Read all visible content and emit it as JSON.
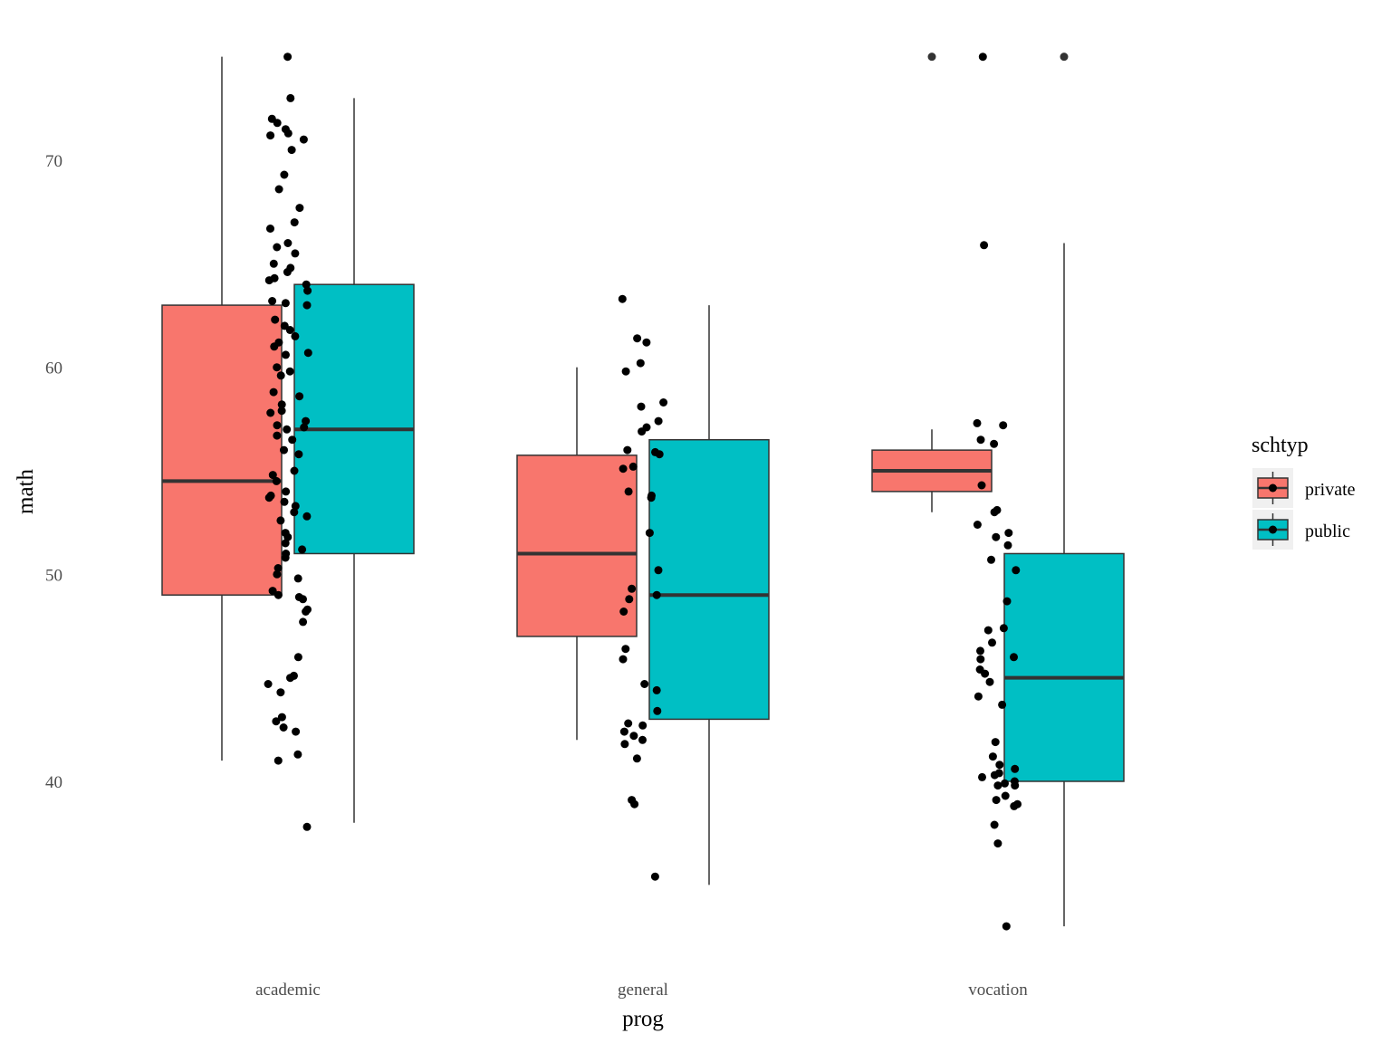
{
  "chart_data": {
    "type": "boxplot",
    "title": "",
    "xlabel": "prog",
    "ylabel": "math",
    "ylim": [
      32,
      76
    ],
    "yticks": [
      40,
      50,
      60,
      70
    ],
    "grid": false,
    "legend_position": "right",
    "categories": [
      "academic",
      "general",
      "vocation"
    ],
    "legend": {
      "title": "schtyp",
      "entries": [
        {
          "label": "private",
          "color": "#F8766D"
        },
        {
          "label": "public",
          "color": "#00BFC4"
        }
      ]
    },
    "series": [
      {
        "name": "private",
        "color": "#F8766D",
        "boxes": [
          {
            "category": "academic",
            "min": 41,
            "q1": 49,
            "median": 54.5,
            "q3": 63,
            "max": 75
          },
          {
            "category": "general",
            "min": 42,
            "q1": 47,
            "median": 51,
            "q3": 55.75,
            "max": 60
          },
          {
            "category": "vocation",
            "min": 53,
            "q1": 54,
            "median": 55,
            "q3": 56,
            "max": 57
          }
        ],
        "outliers": [
          {
            "category": "vocation",
            "value": 75
          }
        ]
      },
      {
        "name": "public",
        "color": "#00BFC4",
        "boxes": [
          {
            "category": "academic",
            "min": 38,
            "q1": 51,
            "median": 57,
            "q3": 64,
            "max": 73
          },
          {
            "category": "general",
            "min": 35,
            "q1": 43,
            "median": 49,
            "q3": 56.5,
            "max": 63
          },
          {
            "category": "vocation",
            "min": 33,
            "q1": 40,
            "median": 45,
            "q3": 51,
            "max": 66
          }
        ],
        "outliers": [
          {
            "category": "vocation",
            "value": 75
          }
        ]
      }
    ],
    "jitter_points": {
      "color": "#000000",
      "groups": [
        {
          "category": "academic",
          "values": [
            75,
            73,
            72,
            71.8,
            71.5,
            71.3,
            71.2,
            71,
            70.5,
            69.3,
            68.6,
            67.7,
            67,
            66.7,
            66,
            65.8,
            65.5,
            65,
            64.8,
            64.6,
            64.3,
            64.2,
            64,
            63.7,
            63.2,
            63.1,
            63,
            62.3,
            62,
            61.8,
            61.5,
            61.2,
            61,
            60.7,
            60.6,
            60,
            59.8,
            59.6,
            58.8,
            58.6,
            58.2,
            57.9,
            57.8,
            57.4,
            57.2,
            57.1,
            57,
            56.7,
            56.5,
            56,
            55.8,
            55,
            54.8,
            54.5,
            54,
            53.8,
            53.7,
            53.5,
            53.3,
            53,
            52.8,
            52.6,
            52,
            51.8,
            51.5,
            51.2,
            51,
            50.8,
            50.3,
            50,
            49.8,
            49.2,
            49,
            48.9,
            48.8,
            48.3,
            48.2,
            47.7,
            46,
            45.1,
            45,
            44.7,
            44.3,
            43.1,
            42.9,
            42.6,
            42.4,
            41.3,
            41,
            37.8
          ]
        },
        {
          "category": "general",
          "values": [
            63.3,
            61.4,
            61.2,
            60.2,
            59.8,
            58.3,
            58.1,
            57.4,
            57.1,
            56.9,
            56,
            55.9,
            55.8,
            55.2,
            55.1,
            54,
            53.8,
            53.7,
            52,
            50.2,
            49.3,
            49,
            48.8,
            48.2,
            46.4,
            45.9,
            44.7,
            44.4,
            43.4,
            42.8,
            42.7,
            42.4,
            42.2,
            42,
            41.8,
            41.1,
            39.1,
            38.9,
            35.4
          ]
        },
        {
          "category": "vocation",
          "values": [
            75,
            65.9,
            57.3,
            57.2,
            56.5,
            56.3,
            54.3,
            53.1,
            53,
            52.4,
            52,
            51.8,
            51.4,
            50.7,
            50.2,
            48.7,
            47.4,
            47.3,
            46.7,
            46.3,
            46,
            45.9,
            45.4,
            45.2,
            44.8,
            44.1,
            43.7,
            41.9,
            41.2,
            40.8,
            40.6,
            40.4,
            40.3,
            40.2,
            40,
            39.9,
            39.8,
            39.8,
            39.3,
            39.1,
            38.9,
            38.8,
            37.9,
            37,
            33
          ]
        }
      ]
    }
  }
}
